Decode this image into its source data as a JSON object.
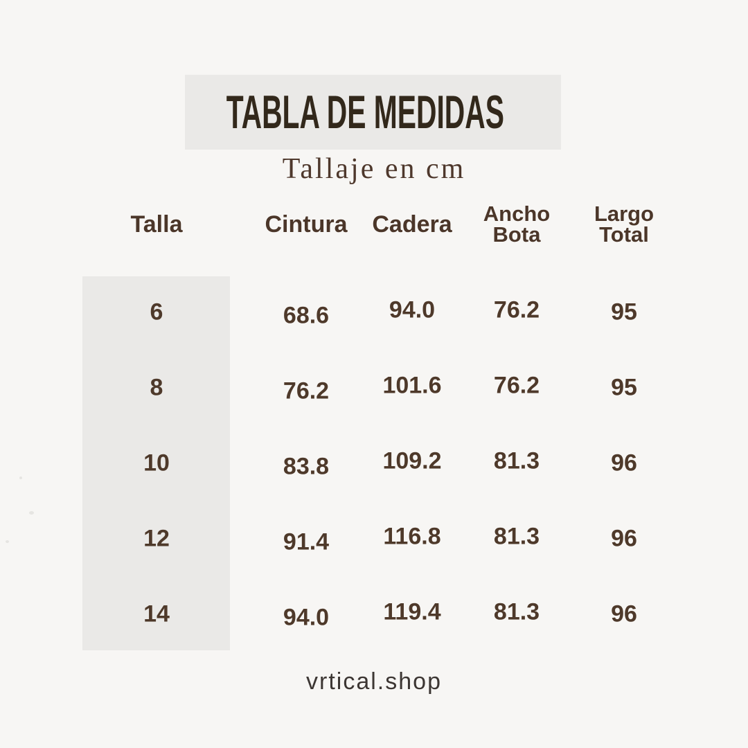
{
  "header": {
    "title": "TABLA DE MEDIDAS",
    "subtitle": "Tallaje en cm"
  },
  "footer": {
    "brand": "vrtical.shop"
  },
  "colors": {
    "background": "#f7f6f4",
    "panel_gray": "#eae9e7",
    "title_brown": "#32281b",
    "text_brown": "#4b3629",
    "footer_gray": "#3c3633"
  },
  "table": {
    "header_lines": [
      [
        "Talla"
      ],
      [
        "Cintura"
      ],
      [
        "Cadera"
      ],
      [
        "Ancho",
        "Bota"
      ],
      [
        "Largo",
        "Total"
      ]
    ]
  },
  "chart_data": {
    "type": "table",
    "title": "TABLA DE MEDIDAS",
    "subtitle": "Tallaje en cm",
    "units": "cm",
    "columns": [
      "Talla",
      "Cintura",
      "Cadera",
      "Ancho Bota",
      "Largo Total"
    ],
    "rows": [
      [
        "6",
        "68.6",
        "94.0",
        "76.2",
        "95"
      ],
      [
        "8",
        "76.2",
        "101.6",
        "76.2",
        "95"
      ],
      [
        "10",
        "83.8",
        "109.2",
        "81.3",
        "96"
      ],
      [
        "12",
        "91.4",
        "116.8",
        "81.3",
        "96"
      ],
      [
        "14",
        "94.0",
        "119.4",
        "81.3",
        "96"
      ]
    ]
  }
}
